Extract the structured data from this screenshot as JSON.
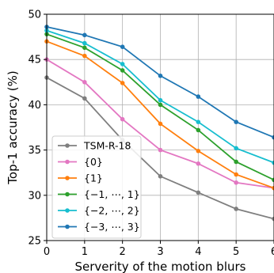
{
  "chart_data": {
    "type": "line",
    "title": "",
    "xlabel": "Serverity of the motion blurs",
    "ylabel": "Top-1 accuracy (%)",
    "xlim": [
      0,
      6
    ],
    "ylim": [
      25,
      50
    ],
    "xticks": [
      "0",
      "1",
      "2",
      "3",
      "4",
      "5",
      "6"
    ],
    "yticks": [
      "25",
      "30",
      "35",
      "40",
      "45",
      "50"
    ],
    "grid": true,
    "legend_position": "lower-left",
    "x": [
      0,
      1,
      2,
      3,
      4,
      5,
      6
    ],
    "series": [
      {
        "name": "TSM-R-18",
        "color": "#7f7f7f",
        "values": [
          43.0,
          40.7,
          36.1,
          32.1,
          30.3,
          28.5,
          27.4
        ]
      },
      {
        "name": "{0}",
        "color": "#e377c2",
        "values": [
          45.0,
          42.5,
          38.4,
          35.0,
          33.5,
          31.4,
          30.8
        ]
      },
      {
        "name": "{1}",
        "color": "#ff7f0e",
        "values": [
          47.0,
          45.4,
          42.4,
          37.9,
          34.9,
          32.3,
          30.8
        ]
      },
      {
        "name": "{−1, ⋯, 1}",
        "color": "#2ca02c",
        "values": [
          47.8,
          46.3,
          43.8,
          40.0,
          37.2,
          33.7,
          31.7
        ]
      },
      {
        "name": "{−2, ⋯, 2}",
        "color": "#17becf",
        "values": [
          48.2,
          46.8,
          44.5,
          40.5,
          38.1,
          35.2,
          33.6
        ]
      },
      {
        "name": "{−3, ⋯, 3}",
        "color": "#1f77b4",
        "values": [
          48.6,
          47.7,
          46.4,
          43.2,
          40.9,
          38.1,
          36.4
        ]
      }
    ]
  }
}
